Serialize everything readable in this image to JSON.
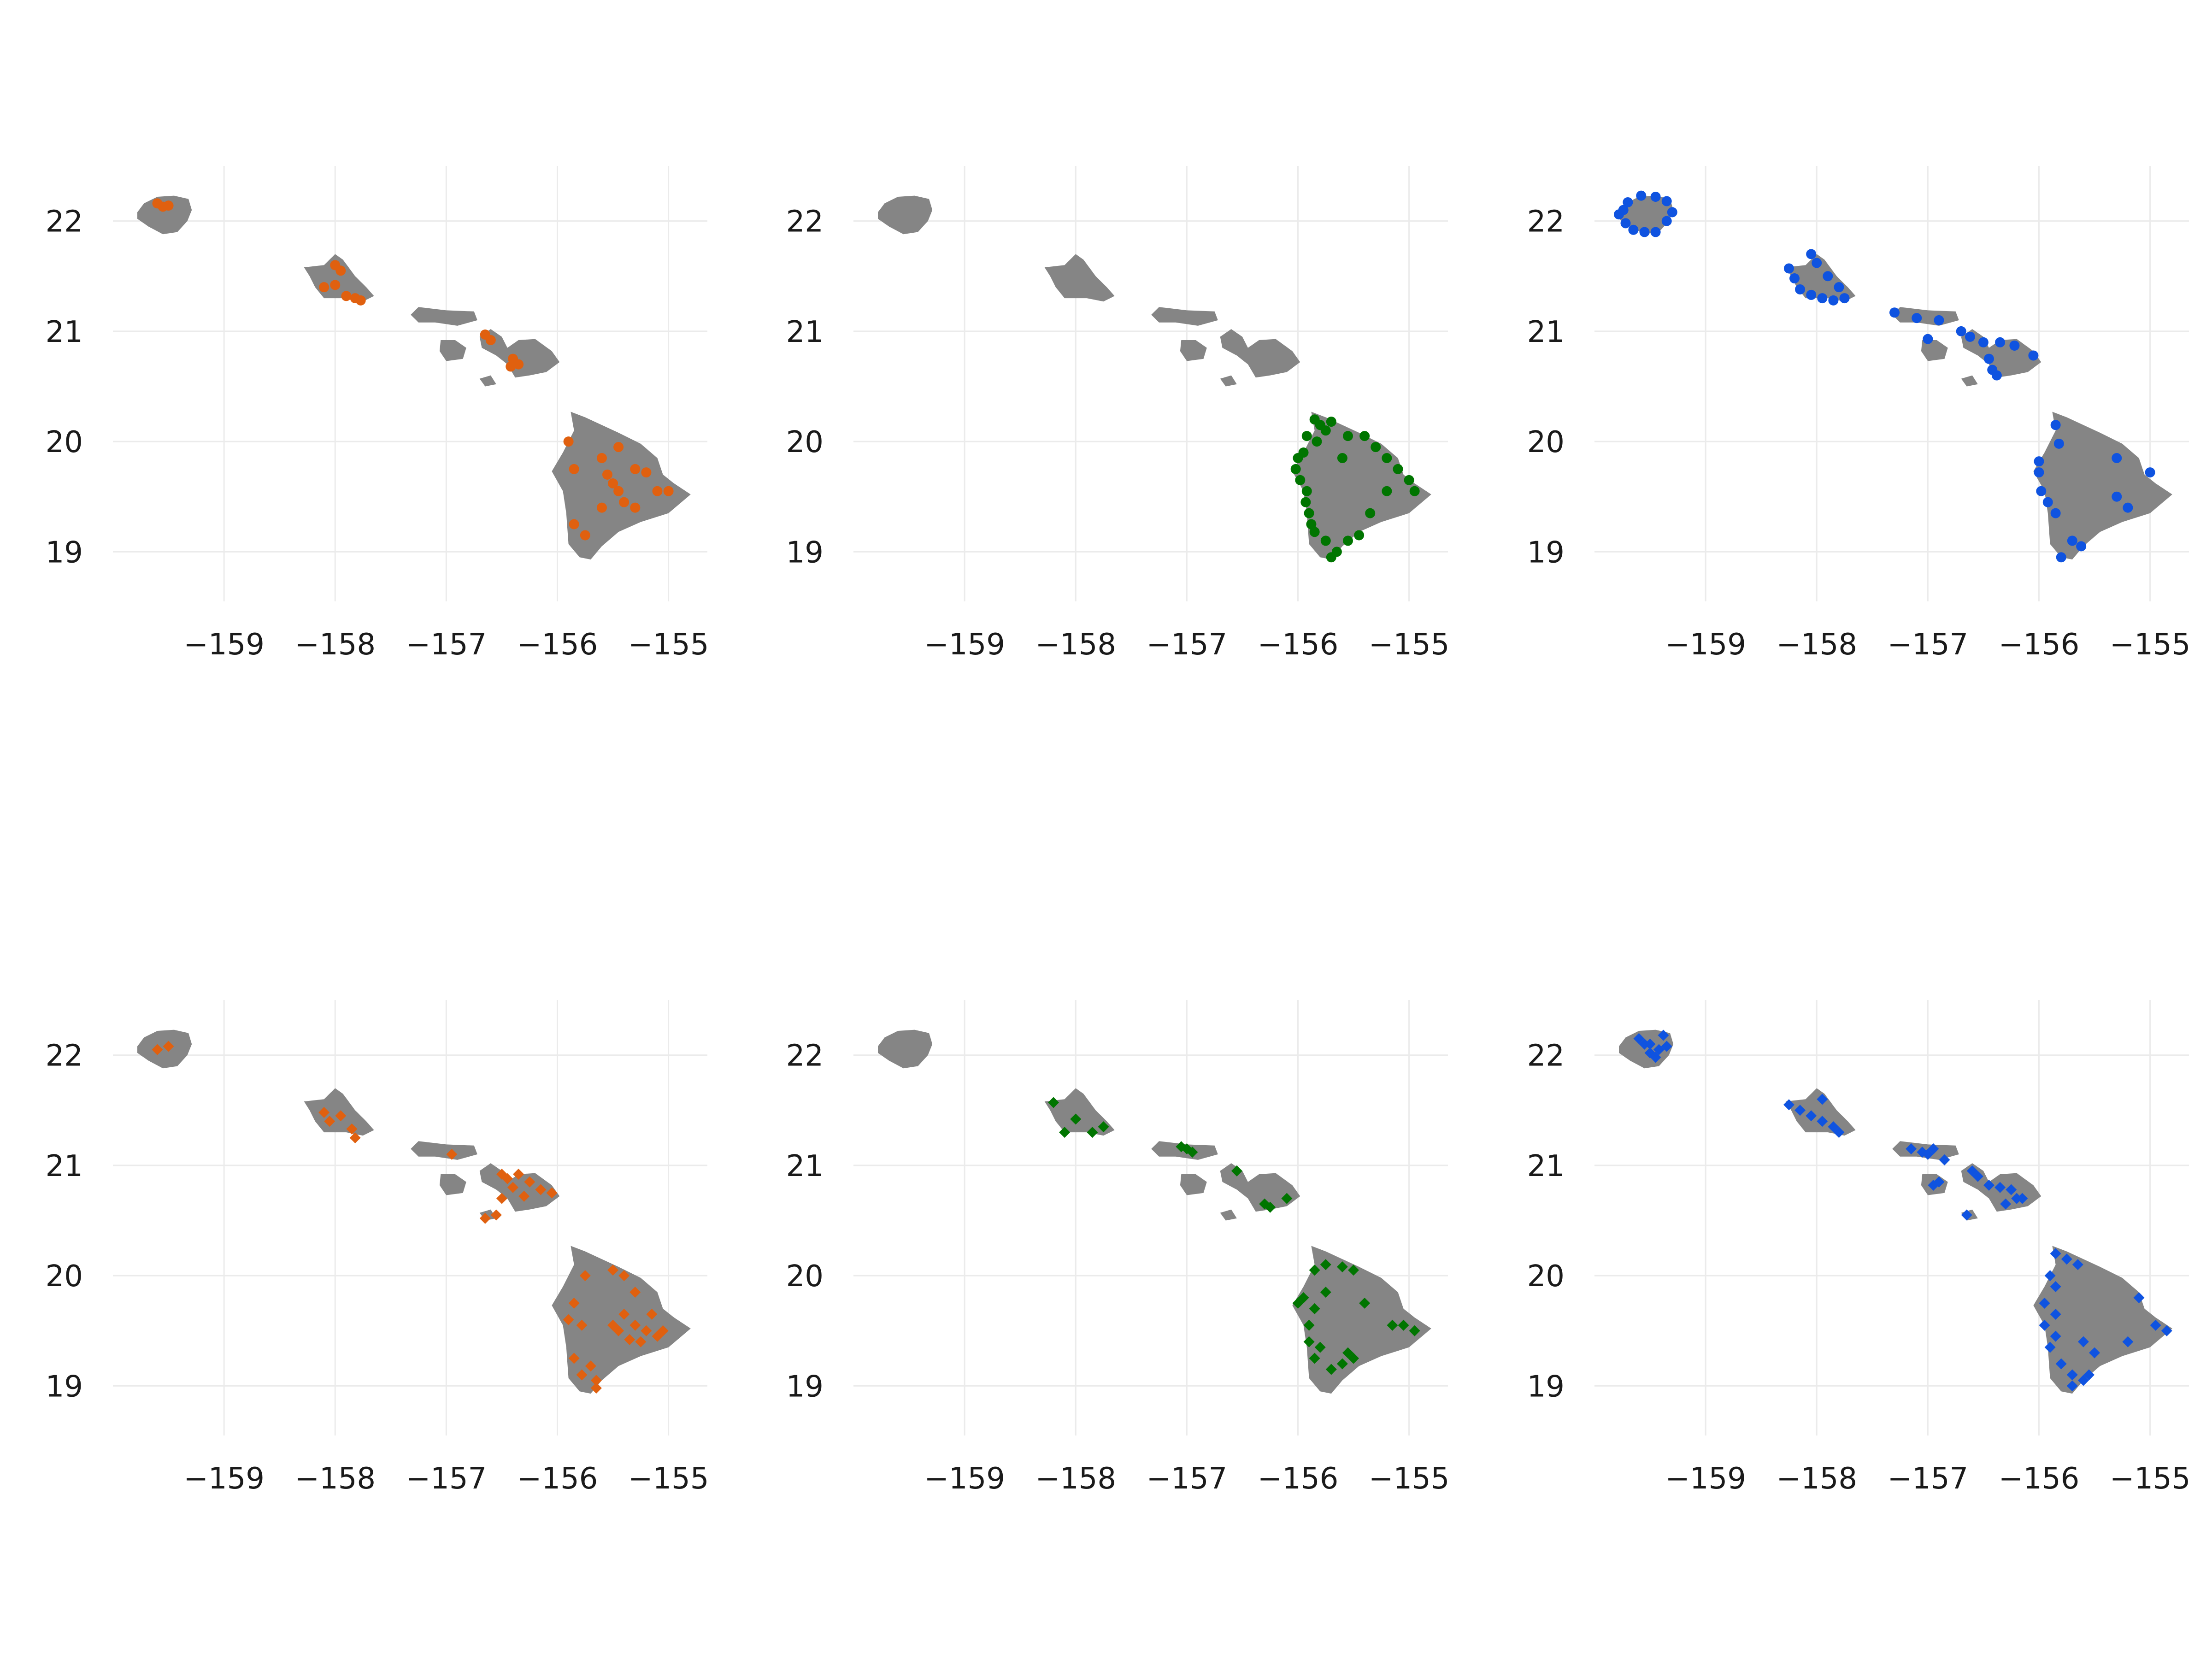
{
  "figure": {
    "panel_count": 6,
    "layout": "2 rows x 3 columns",
    "land_color": "#858585",
    "grid_color": "#ebebeb",
    "background": "#ffffff"
  },
  "chart_data": [
    {
      "type": "scatter",
      "subtype": "point map over Hawaiian Islands land polygons",
      "xticks": [
        -159,
        -158,
        -157,
        -156,
        -155
      ],
      "yticks": [
        19,
        20,
        21,
        22
      ],
      "xlim": [
        -160.0,
        -154.65
      ],
      "ylim": [
        18.55,
        22.5
      ],
      "marker": "circle",
      "color": "#e0600f",
      "points": [
        [
          -159.55,
          22.13
        ],
        [
          -159.6,
          22.16
        ],
        [
          -159.5,
          22.14
        ],
        [
          -158.0,
          21.6
        ],
        [
          -157.95,
          21.55
        ],
        [
          -158.1,
          21.4
        ],
        [
          -158.0,
          21.42
        ],
        [
          -157.9,
          21.32
        ],
        [
          -157.82,
          21.3
        ],
        [
          -157.77,
          21.28
        ],
        [
          -156.65,
          20.97
        ],
        [
          -156.6,
          20.92
        ],
        [
          -156.4,
          20.75
        ],
        [
          -156.35,
          20.7
        ],
        [
          -156.42,
          20.68
        ],
        [
          -155.9,
          20.0
        ],
        [
          -155.85,
          19.75
        ],
        [
          -155.6,
          19.85
        ],
        [
          -155.55,
          19.7
        ],
        [
          -155.45,
          19.95
        ],
        [
          -155.5,
          19.62
        ],
        [
          -155.45,
          19.55
        ],
        [
          -155.4,
          19.45
        ],
        [
          -155.3,
          19.75
        ],
        [
          -155.2,
          19.72
        ],
        [
          -155.1,
          19.55
        ],
        [
          -155.6,
          19.4
        ],
        [
          -155.85,
          19.25
        ],
        [
          -155.75,
          19.15
        ],
        [
          -155.3,
          19.4
        ],
        [
          -155.0,
          19.55
        ]
      ]
    },
    {
      "type": "scatter",
      "subtype": "point map over Hawaiian Islands land polygons",
      "xticks": [
        -159,
        -158,
        -157,
        -156,
        -155
      ],
      "yticks": [
        19,
        20,
        21,
        22
      ],
      "xlim": [
        -160.0,
        -154.65
      ],
      "ylim": [
        18.55,
        22.5
      ],
      "marker": "circle",
      "color": "#007500",
      "points": [
        [
          -155.85,
          20.2
        ],
        [
          -155.8,
          20.15
        ],
        [
          -155.75,
          20.1
        ],
        [
          -155.92,
          20.05
        ],
        [
          -155.83,
          20.0
        ],
        [
          -155.95,
          19.9
        ],
        [
          -156.0,
          19.85
        ],
        [
          -156.02,
          19.75
        ],
        [
          -155.98,
          19.65
        ],
        [
          -155.92,
          19.55
        ],
        [
          -155.93,
          19.45
        ],
        [
          -155.9,
          19.35
        ],
        [
          -155.88,
          19.25
        ],
        [
          -155.85,
          19.18
        ],
        [
          -155.75,
          19.1
        ],
        [
          -155.65,
          19.0
        ],
        [
          -155.7,
          18.95
        ],
        [
          -155.55,
          19.1
        ],
        [
          -155.45,
          19.15
        ],
        [
          -155.55,
          20.05
        ],
        [
          -155.4,
          20.05
        ],
        [
          -155.3,
          19.95
        ],
        [
          -155.2,
          19.85
        ],
        [
          -155.1,
          19.75
        ],
        [
          -155.0,
          19.65
        ],
        [
          -154.95,
          19.55
        ],
        [
          -155.2,
          19.55
        ],
        [
          -155.35,
          19.35
        ],
        [
          -155.6,
          19.85
        ],
        [
          -155.7,
          20.18
        ]
      ]
    },
    {
      "type": "scatter",
      "subtype": "point map over Hawaiian Islands land polygons",
      "xticks": [
        -159,
        -158,
        -157,
        -156,
        -155
      ],
      "yticks": [
        19,
        20,
        21,
        22
      ],
      "xlim": [
        -160.0,
        -154.65
      ],
      "ylim": [
        18.55,
        22.5
      ],
      "marker": "circle",
      "color": "#0f53e0",
      "points": [
        [
          -159.78,
          22.06
        ],
        [
          -159.72,
          21.98
        ],
        [
          -159.65,
          21.92
        ],
        [
          -159.55,
          21.9
        ],
        [
          -159.45,
          21.9
        ],
        [
          -159.35,
          22.0
        ],
        [
          -159.3,
          22.08
        ],
        [
          -159.35,
          22.18
        ],
        [
          -159.45,
          22.22
        ],
        [
          -159.58,
          22.23
        ],
        [
          -159.7,
          22.17
        ],
        [
          -159.74,
          22.1
        ],
        [
          -158.25,
          21.57
        ],
        [
          -158.2,
          21.48
        ],
        [
          -158.15,
          21.38
        ],
        [
          -158.05,
          21.33
        ],
        [
          -157.95,
          21.3
        ],
        [
          -157.85,
          21.28
        ],
        [
          -157.75,
          21.3
        ],
        [
          -157.8,
          21.4
        ],
        [
          -157.9,
          21.5
        ],
        [
          -158.0,
          21.62
        ],
        [
          -158.05,
          21.7
        ],
        [
          -157.3,
          21.17
        ],
        [
          -157.1,
          21.12
        ],
        [
          -156.9,
          21.1
        ],
        [
          -156.7,
          21.0
        ],
        [
          -156.62,
          20.95
        ],
        [
          -156.5,
          20.9
        ],
        [
          -156.35,
          20.9
        ],
        [
          -156.22,
          20.87
        ],
        [
          -156.05,
          20.78
        ],
        [
          -156.45,
          20.75
        ],
        [
          -156.42,
          20.65
        ],
        [
          -156.38,
          20.6
        ],
        [
          -157.0,
          20.93
        ],
        [
          -155.85,
          20.15
        ],
        [
          -155.82,
          19.98
        ],
        [
          -156.0,
          19.82
        ],
        [
          -156.0,
          19.72
        ],
        [
          -155.98,
          19.55
        ],
        [
          -155.92,
          19.45
        ],
        [
          -155.85,
          19.35
        ],
        [
          -155.7,
          19.1
        ],
        [
          -155.62,
          19.05
        ],
        [
          -155.8,
          18.95
        ],
        [
          -155.3,
          19.5
        ],
        [
          -155.2,
          19.4
        ],
        [
          -155.0,
          19.72
        ],
        [
          -155.3,
          19.85
        ]
      ]
    },
    {
      "type": "scatter",
      "subtype": "point map over Hawaiian Islands land polygons",
      "xticks": [
        -159,
        -158,
        -157,
        -156,
        -155
      ],
      "yticks": [
        19,
        20,
        21,
        22
      ],
      "xlim": [
        -160.0,
        -154.65
      ],
      "ylim": [
        18.55,
        22.5
      ],
      "marker": "diamond",
      "color": "#e0600f",
      "points": [
        [
          -159.5,
          22.08
        ],
        [
          -159.6,
          22.05
        ],
        [
          -158.1,
          21.48
        ],
        [
          -158.05,
          21.4
        ],
        [
          -157.95,
          21.45
        ],
        [
          -157.85,
          21.33
        ],
        [
          -157.82,
          21.25
        ],
        [
          -156.95,
          21.1
        ],
        [
          -156.5,
          20.92
        ],
        [
          -156.45,
          20.88
        ],
        [
          -156.35,
          20.92
        ],
        [
          -156.25,
          20.85
        ],
        [
          -156.4,
          20.8
        ],
        [
          -156.3,
          20.72
        ],
        [
          -156.15,
          20.78
        ],
        [
          -156.05,
          20.75
        ],
        [
          -156.5,
          20.7
        ],
        [
          -156.55,
          20.55
        ],
        [
          -156.65,
          20.52
        ],
        [
          -155.75,
          20.0
        ],
        [
          -155.5,
          20.05
        ],
        [
          -155.4,
          20.0
        ],
        [
          -155.3,
          19.85
        ],
        [
          -155.4,
          19.65
        ],
        [
          -155.3,
          19.55
        ],
        [
          -155.2,
          19.5
        ],
        [
          -155.1,
          19.45
        ],
        [
          -155.25,
          19.4
        ],
        [
          -155.35,
          19.42
        ],
        [
          -155.45,
          19.5
        ],
        [
          -155.5,
          19.55
        ],
        [
          -155.85,
          19.75
        ],
        [
          -155.9,
          19.6
        ],
        [
          -155.78,
          19.55
        ],
        [
          -155.85,
          19.25
        ],
        [
          -155.7,
          19.18
        ],
        [
          -155.78,
          19.1
        ],
        [
          -155.65,
          19.05
        ],
        [
          -155.65,
          18.98
        ],
        [
          -155.15,
          19.65
        ],
        [
          -155.05,
          19.5
        ]
      ]
    },
    {
      "type": "scatter",
      "subtype": "point map over Hawaiian Islands land polygons",
      "xticks": [
        -159,
        -158,
        -157,
        -156,
        -155
      ],
      "yticks": [
        19,
        20,
        21,
        22
      ],
      "xlim": [
        -160.0,
        -154.65
      ],
      "ylim": [
        18.55,
        22.5
      ],
      "marker": "diamond",
      "color": "#007500",
      "points": [
        [
          -158.2,
          21.57
        ],
        [
          -158.0,
          21.42
        ],
        [
          -157.75,
          21.35
        ],
        [
          -157.85,
          21.3
        ],
        [
          -158.1,
          21.3
        ],
        [
          -157.05,
          21.17
        ],
        [
          -157.0,
          21.15
        ],
        [
          -156.95,
          21.12
        ],
        [
          -156.55,
          20.95
        ],
        [
          -156.25,
          20.62
        ],
        [
          -156.3,
          20.65
        ],
        [
          -156.1,
          20.7
        ],
        [
          -155.85,
          20.05
        ],
        [
          -155.75,
          20.1
        ],
        [
          -155.6,
          20.08
        ],
        [
          -155.5,
          20.05
        ],
        [
          -155.95,
          19.8
        ],
        [
          -156.0,
          19.75
        ],
        [
          -155.85,
          19.7
        ],
        [
          -155.75,
          19.85
        ],
        [
          -155.9,
          19.55
        ],
        [
          -155.9,
          19.4
        ],
        [
          -155.8,
          19.35
        ],
        [
          -155.85,
          19.25
        ],
        [
          -155.7,
          19.15
        ],
        [
          -155.6,
          19.2
        ],
        [
          -155.5,
          19.25
        ],
        [
          -155.55,
          19.3
        ],
        [
          -155.05,
          19.55
        ],
        [
          -154.95,
          19.5
        ],
        [
          -155.15,
          19.55
        ],
        [
          -155.4,
          19.75
        ]
      ]
    },
    {
      "type": "scatter",
      "subtype": "point map over Hawaiian Islands land polygons",
      "xticks": [
        -159,
        -158,
        -157,
        -156,
        -155
      ],
      "yticks": [
        19,
        20,
        21,
        22
      ],
      "xlim": [
        -160.0,
        -154.65
      ],
      "ylim": [
        18.55,
        22.5
      ],
      "marker": "diamond",
      "color": "#0f53e0",
      "points": [
        [
          -159.6,
          22.15
        ],
        [
          -159.5,
          22.1
        ],
        [
          -159.42,
          22.05
        ],
        [
          -159.45,
          21.98
        ],
        [
          -159.38,
          22.18
        ],
        [
          -159.5,
          22.02
        ],
        [
          -159.55,
          22.1
        ],
        [
          -159.35,
          22.08
        ],
        [
          -158.25,
          21.55
        ],
        [
          -158.15,
          21.5
        ],
        [
          -158.05,
          21.45
        ],
        [
          -157.95,
          21.4
        ],
        [
          -157.85,
          21.35
        ],
        [
          -157.95,
          21.6
        ],
        [
          -157.8,
          21.3
        ],
        [
          -157.15,
          21.15
        ],
        [
          -157.05,
          21.12
        ],
        [
          -157.0,
          21.1
        ],
        [
          -156.95,
          21.15
        ],
        [
          -156.85,
          21.05
        ],
        [
          -156.9,
          20.85
        ],
        [
          -156.95,
          20.82
        ],
        [
          -156.6,
          20.95
        ],
        [
          -156.55,
          20.9
        ],
        [
          -156.45,
          20.82
        ],
        [
          -156.35,
          20.8
        ],
        [
          -156.25,
          20.78
        ],
        [
          -156.2,
          20.7
        ],
        [
          -156.3,
          20.65
        ],
        [
          -156.15,
          20.7
        ],
        [
          -156.65,
          20.55
        ],
        [
          -155.85,
          20.2
        ],
        [
          -155.75,
          20.15
        ],
        [
          -155.65,
          20.1
        ],
        [
          -155.9,
          20.0
        ],
        [
          -155.85,
          19.9
        ],
        [
          -155.95,
          19.75
        ],
        [
          -155.85,
          19.65
        ],
        [
          -155.95,
          19.55
        ],
        [
          -155.85,
          19.45
        ],
        [
          -155.9,
          19.35
        ],
        [
          -155.8,
          19.2
        ],
        [
          -155.7,
          19.1
        ],
        [
          -155.6,
          19.05
        ],
        [
          -155.7,
          19.0
        ],
        [
          -155.55,
          19.1
        ],
        [
          -155.5,
          19.3
        ],
        [
          -155.6,
          19.4
        ],
        [
          -155.1,
          19.8
        ],
        [
          -154.95,
          19.55
        ],
        [
          -154.85,
          19.5
        ],
        [
          -155.2,
          19.4
        ]
      ]
    }
  ]
}
